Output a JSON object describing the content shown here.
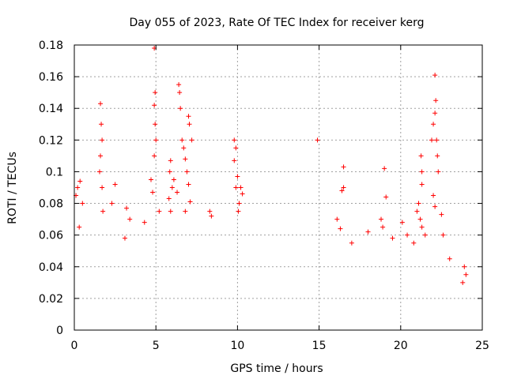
{
  "chart_data": {
    "type": "scatter",
    "title": "Day 055 of 2023, Rate Of TEC Index for receiver kerg",
    "xlabel": "GPS time / hours",
    "ylabel": "ROTI / TECUs",
    "xlim": [
      0,
      25
    ],
    "ylim": [
      0,
      0.18
    ],
    "xticks": [
      "0",
      "5",
      "10",
      "15",
      "20",
      "25"
    ],
    "yticks": [
      "0",
      "0.02",
      "0.04",
      "0.06",
      "0.08",
      "0.1",
      "0.12",
      "0.14",
      "0.16",
      "0.18"
    ],
    "grid": true,
    "marker": "+",
    "color": "#ff0000",
    "series": [
      {
        "points": [
          [
            0.1,
            0.085
          ],
          [
            0.2,
            0.09
          ],
          [
            0.35,
            0.094
          ],
          [
            0.5,
            0.08
          ],
          [
            0.3,
            0.065
          ],
          [
            1.6,
            0.143
          ],
          [
            1.65,
            0.13
          ],
          [
            1.7,
            0.12
          ],
          [
            1.6,
            0.11
          ],
          [
            1.55,
            0.1
          ],
          [
            1.7,
            0.09
          ],
          [
            1.75,
            0.075
          ],
          [
            2.5,
            0.092
          ],
          [
            2.3,
            0.08
          ],
          [
            3.2,
            0.077
          ],
          [
            3.4,
            0.07
          ],
          [
            3.1,
            0.058
          ],
          [
            4.3,
            0.068
          ],
          [
            4.8,
            0.087
          ],
          [
            4.7,
            0.095
          ],
          [
            4.9,
            0.11
          ],
          [
            4.95,
            0.13
          ],
          [
            4.9,
            0.142
          ],
          [
            4.95,
            0.15
          ],
          [
            4.9,
            0.178
          ],
          [
            5.0,
            0.12
          ],
          [
            5.2,
            0.075
          ],
          [
            5.8,
            0.083
          ],
          [
            5.9,
            0.075
          ],
          [
            6.0,
            0.09
          ],
          [
            5.85,
            0.1
          ],
          [
            5.9,
            0.107
          ],
          [
            6.1,
            0.095
          ],
          [
            6.3,
            0.087
          ],
          [
            6.4,
            0.155
          ],
          [
            6.45,
            0.15
          ],
          [
            6.5,
            0.14
          ],
          [
            6.6,
            0.12
          ],
          [
            6.7,
            0.115
          ],
          [
            6.8,
            0.108
          ],
          [
            6.9,
            0.1
          ],
          [
            7.0,
            0.092
          ],
          [
            7.1,
            0.081
          ],
          [
            6.8,
            0.075
          ],
          [
            7.0,
            0.135
          ],
          [
            7.2,
            0.12
          ],
          [
            7.05,
            0.13
          ],
          [
            8.3,
            0.075
          ],
          [
            8.4,
            0.072
          ],
          [
            9.8,
            0.12
          ],
          [
            9.9,
            0.115
          ],
          [
            9.8,
            0.107
          ],
          [
            10.0,
            0.097
          ],
          [
            10.2,
            0.09
          ],
          [
            10.3,
            0.086
          ],
          [
            10.1,
            0.08
          ],
          [
            9.9,
            0.09
          ],
          [
            10.05,
            0.075
          ],
          [
            14.9,
            0.12
          ],
          [
            16.5,
            0.103
          ],
          [
            16.5,
            0.09
          ],
          [
            16.4,
            0.088
          ],
          [
            16.3,
            0.064
          ],
          [
            16.1,
            0.07
          ],
          [
            17.0,
            0.055
          ],
          [
            18.0,
            0.062
          ],
          [
            18.8,
            0.07
          ],
          [
            18.9,
            0.065
          ],
          [
            19.1,
            0.084
          ],
          [
            19.0,
            0.102
          ],
          [
            19.5,
            0.058
          ],
          [
            20.1,
            0.068
          ],
          [
            20.4,
            0.06
          ],
          [
            20.8,
            0.055
          ],
          [
            21.0,
            0.075
          ],
          [
            21.1,
            0.08
          ],
          [
            21.2,
            0.07
          ],
          [
            21.3,
            0.065
          ],
          [
            21.25,
            0.11
          ],
          [
            21.3,
            0.1
          ],
          [
            21.3,
            0.092
          ],
          [
            21.5,
            0.06
          ],
          [
            21.9,
            0.12
          ],
          [
            22.0,
            0.13
          ],
          [
            22.1,
            0.137
          ],
          [
            22.15,
            0.145
          ],
          [
            22.1,
            0.161
          ],
          [
            22.2,
            0.12
          ],
          [
            22.25,
            0.11
          ],
          [
            22.3,
            0.1
          ],
          [
            22.0,
            0.085
          ],
          [
            22.1,
            0.078
          ],
          [
            22.5,
            0.073
          ],
          [
            22.6,
            0.06
          ],
          [
            23.0,
            0.045
          ],
          [
            23.9,
            0.04
          ],
          [
            24.0,
            0.035
          ],
          [
            23.8,
            0.03
          ]
        ]
      }
    ]
  }
}
